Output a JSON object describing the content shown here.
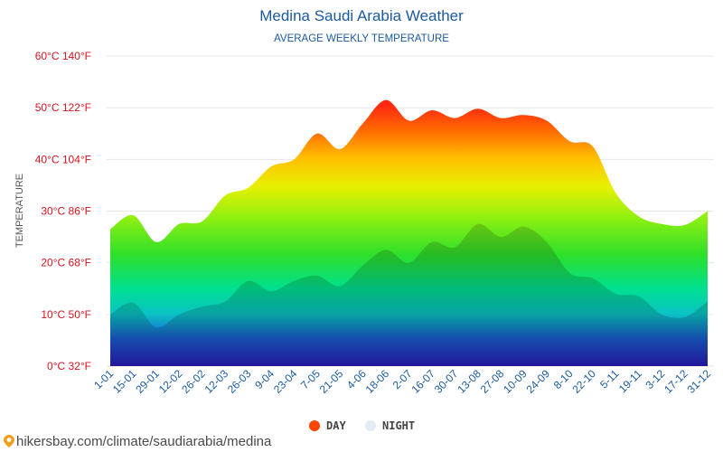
{
  "chart_data": {
    "type": "area",
    "title": "Medina Saudi Arabia Weather",
    "subtitle": "AVERAGE WEEKLY TEMPERATURE",
    "ylabel": "TEMPERATURE",
    "xlabel": "",
    "ylim": [
      0,
      60
    ],
    "y_ticks": [
      {
        "value": 0,
        "label": "0°C 32°F"
      },
      {
        "value": 10,
        "label": "10°C 50°F"
      },
      {
        "value": 20,
        "label": "20°C 68°F"
      },
      {
        "value": 30,
        "label": "30°C 86°F"
      },
      {
        "value": 40,
        "label": "40°C 104°F"
      },
      {
        "value": 50,
        "label": "50°C 122°F"
      },
      {
        "value": 60,
        "label": "60°C 140°F"
      }
    ],
    "categories": [
      "1-01",
      "15-01",
      "29-01",
      "12-02",
      "26-02",
      "12-03",
      "26-03",
      "9-04",
      "23-04",
      "7-05",
      "21-05",
      "4-06",
      "18-06",
      "2-07",
      "16-07",
      "30-07",
      "13-08",
      "27-08",
      "10-09",
      "24-09",
      "8-10",
      "22-10",
      "5-11",
      "19-11",
      "3-12",
      "17-12",
      "31-12"
    ],
    "x_ticks": [
      "1-01",
      "15-01",
      "29-01",
      "12-02",
      "26-02",
      "12-03",
      "26-03",
      "9-04",
      "23-04",
      "7-05",
      "21-05",
      "4-06",
      "18-06",
      "2-07",
      "16-07",
      "30-07",
      "13-08",
      "27-08",
      "10-09",
      "24-09",
      "8-10",
      "22-10",
      "5-11",
      "19-11",
      "3-12",
      "17-12",
      "31-12"
    ],
    "series": [
      {
        "name": "DAY",
        "color": "#ff4500",
        "values": [
          26.5,
          29.2,
          24.0,
          27.5,
          28.0,
          33.0,
          34.5,
          38.6,
          40.0,
          45.0,
          42.0,
          47.0,
          51.5,
          47.5,
          49.5,
          48.0,
          49.8,
          48.0,
          48.6,
          47.5,
          43.5,
          42.5,
          33.5,
          29.0,
          27.5,
          27.3,
          30.0
        ]
      },
      {
        "name": "NIGHT",
        "color": "#e3ecf4",
        "values": [
          10.0,
          12.3,
          7.5,
          10.0,
          11.5,
          12.5,
          16.5,
          14.5,
          16.5,
          17.5,
          15.5,
          19.5,
          22.5,
          20.0,
          24.0,
          23.0,
          27.5,
          25.0,
          27.0,
          24.0,
          18.0,
          17.0,
          14.0,
          13.5,
          10.0,
          9.5,
          12.5
        ]
      }
    ],
    "grid": true,
    "legend_position": "bottom-center"
  },
  "footer": {
    "text": "hikersbay.com/climate/saudiarabia/medina"
  },
  "colors": {
    "title": "#1a5a9c",
    "axis_label": "#d4141e",
    "x_tick": "#1a5a9c",
    "grid": "#e6e6e6",
    "day_legend": "#ff4500",
    "night_legend": "#e3ecf4"
  }
}
